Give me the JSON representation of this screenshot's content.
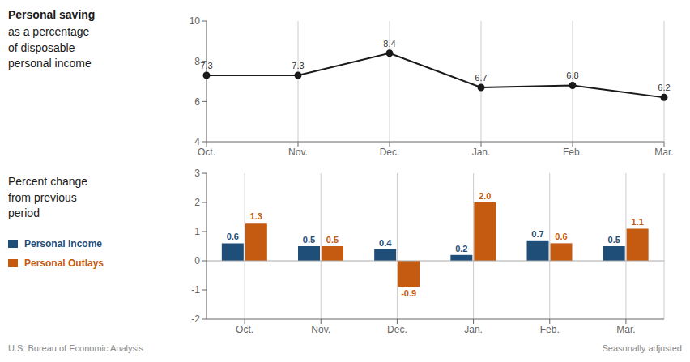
{
  "chart_data": [
    {
      "type": "line",
      "title": "Personal saving",
      "subtitle": "as a percentage\nof disposable\npersonal income",
      "categories": [
        "Oct.",
        "Nov.",
        "Dec.",
        "Jan.",
        "Feb.",
        "Mar."
      ],
      "values": [
        7.3,
        7.3,
        8.4,
        6.7,
        6.8,
        6.2
      ],
      "color": "#1a1a1a",
      "marker": "o",
      "ylim": [
        4,
        10
      ],
      "yticks": [
        4,
        6,
        8,
        10
      ],
      "grid": true,
      "data_labels": true
    },
    {
      "type": "bar",
      "title": "Percent change\nfrom previous\nperiod",
      "categories": [
        "Oct.",
        "Nov.",
        "Dec.",
        "Jan.",
        "Feb.",
        "Mar."
      ],
      "series": [
        {
          "name": "Personal Income",
          "color": "#1f4e79",
          "values": [
            0.6,
            0.5,
            0.4,
            0.2,
            0.7,
            0.5
          ]
        },
        {
          "name": "Personal Outlays",
          "color": "#c55a11",
          "values": [
            1.3,
            0.5,
            -0.9,
            2.0,
            0.6,
            1.1
          ],
          "value_labels": [
            "1.3",
            "0.5",
            "-0.9",
            "2.0",
            "0.6",
            "1.1"
          ]
        }
      ],
      "ylim": [
        -2,
        3
      ],
      "yticks": [
        -2,
        -1,
        0,
        1,
        2,
        3
      ],
      "grid": true,
      "data_labels": true,
      "legend": "left",
      "annotations": [
        "U.S. Bureau of Economic Analysis",
        "Seasonally adjusted"
      ]
    }
  ]
}
